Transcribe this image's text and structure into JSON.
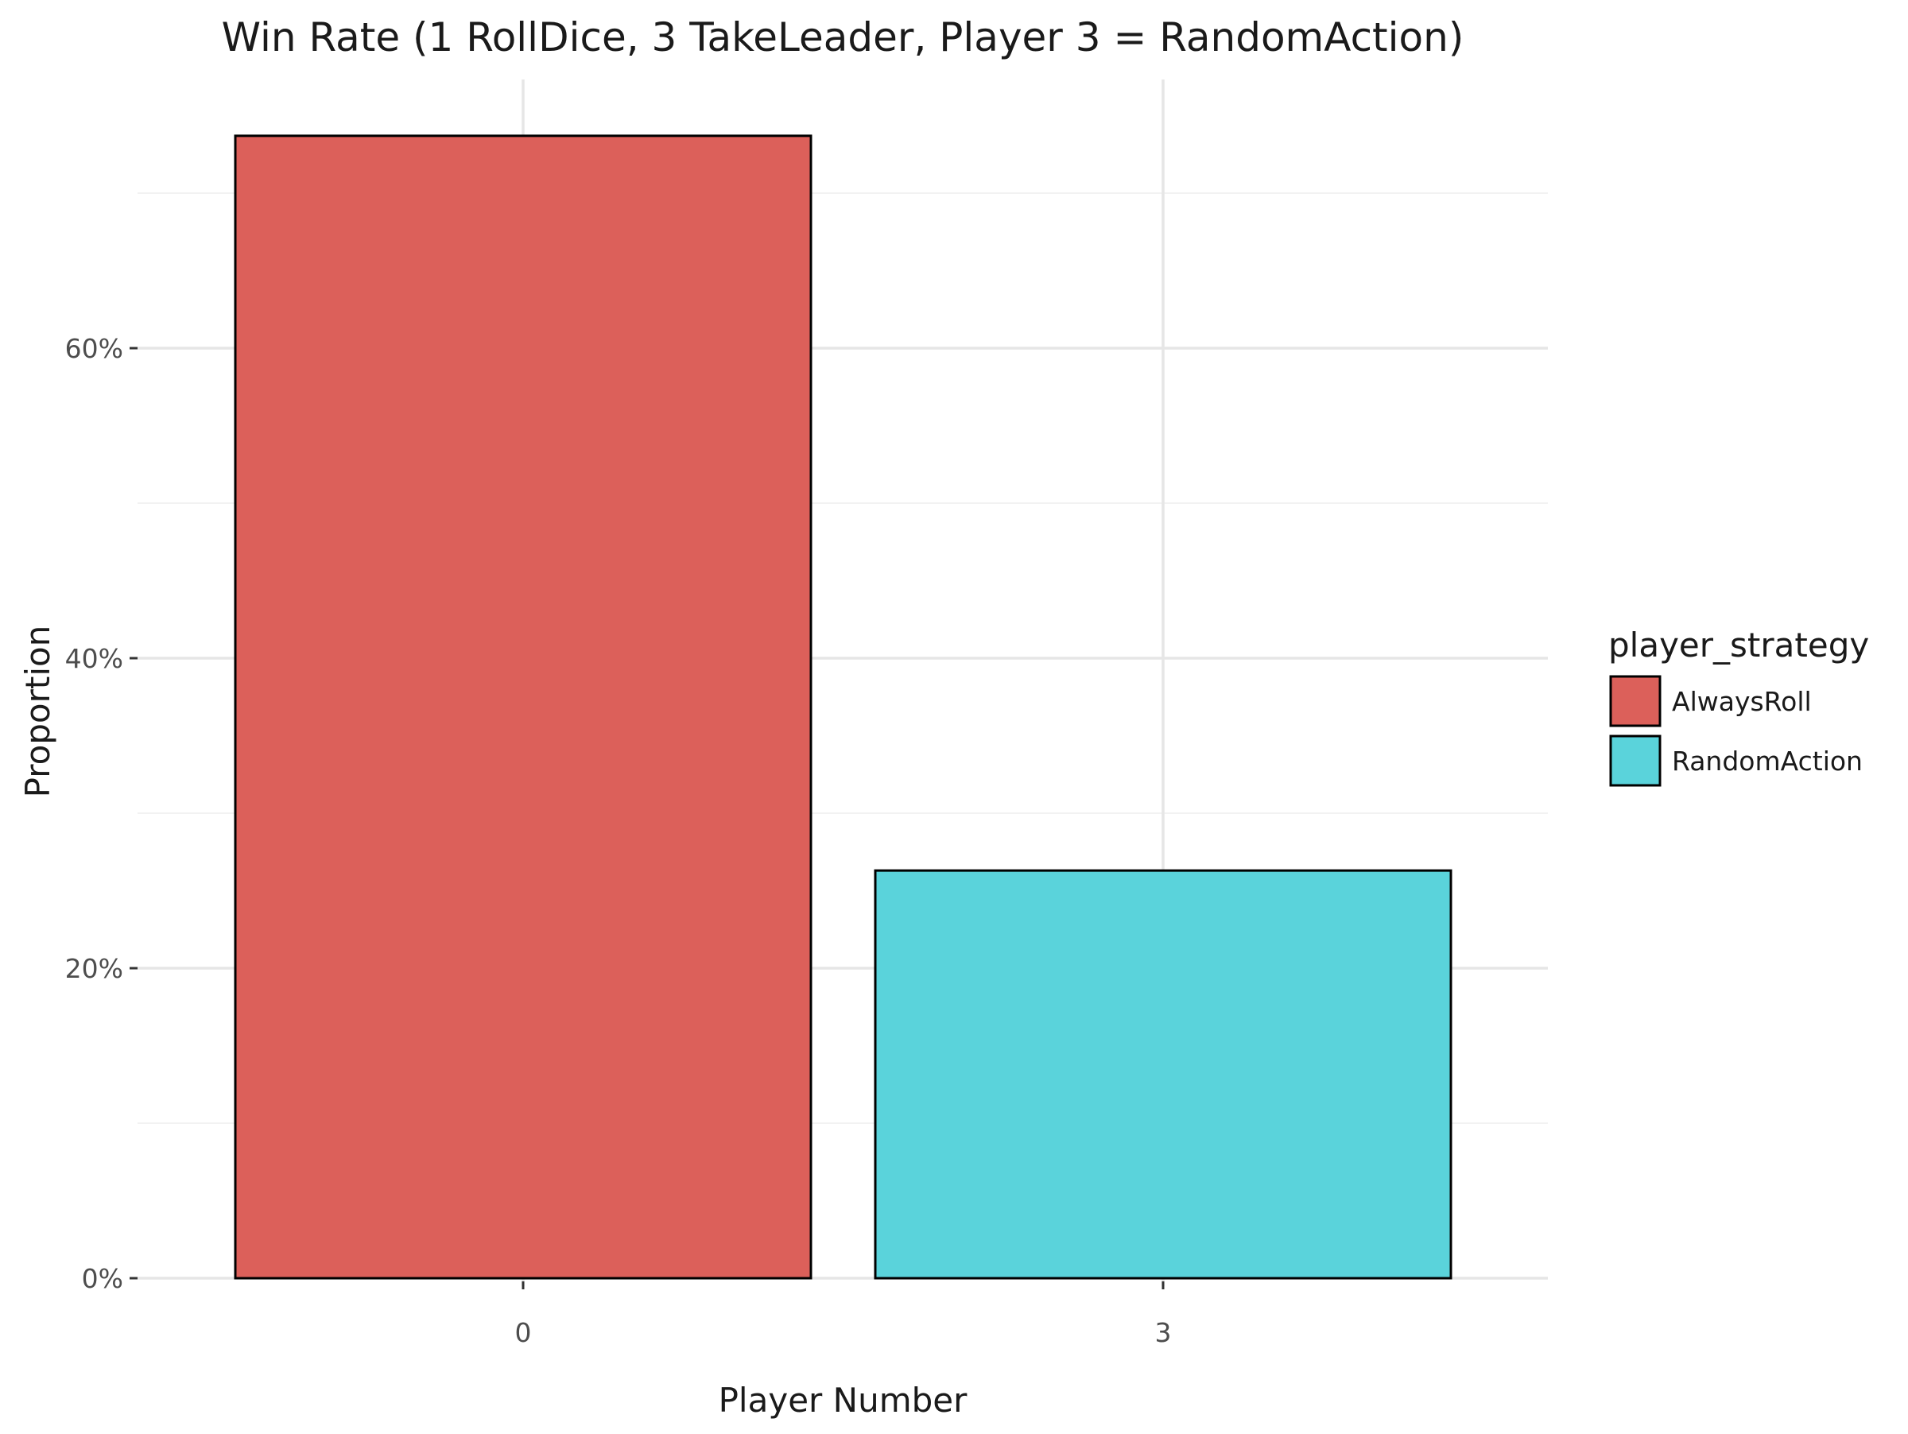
{
  "chart_data": {
    "type": "bar",
    "title": "Win Rate (1 RollDice, 3 TakeLeader, Player 3 = RandomAction)",
    "xlabel": "Player Number",
    "ylabel": "Proportion",
    "categories": [
      "0",
      "3"
    ],
    "values": [
      0.737,
      0.263
    ],
    "bar_strategies": [
      "AlwaysRoll",
      "RandomAction"
    ],
    "ylim": [
      0,
      0.77
    ],
    "yticks": [
      0,
      0.2,
      0.4,
      0.6
    ],
    "ytick_labels": [
      "0%",
      "20%",
      "40%",
      "60%"
    ],
    "grid": true,
    "legend": {
      "title": "player_strategy",
      "placement": "right",
      "entries": [
        {
          "label": "AlwaysRoll",
          "color": "#DC605A"
        },
        {
          "label": "RandomAction",
          "color": "#5AD3DB"
        }
      ]
    },
    "colors": {
      "AlwaysRoll": "#DC605A",
      "RandomAction": "#5AD3DB"
    }
  }
}
